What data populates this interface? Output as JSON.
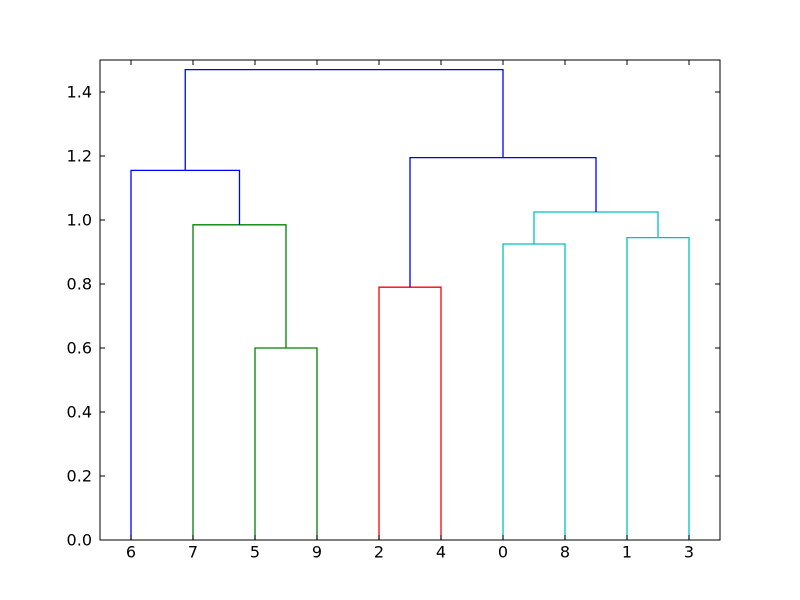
{
  "chart_data": {
    "type": "dendrogram",
    "leaf_order": [
      "6",
      "7",
      "5",
      "9",
      "2",
      "4",
      "0",
      "8",
      "1",
      "3"
    ],
    "ylim": [
      0,
      1.5
    ],
    "yticks": [
      0.0,
      0.2,
      0.4,
      0.6,
      0.8,
      1.0,
      1.2,
      1.4
    ],
    "ytick_labels": [
      "0.0",
      "0.2",
      "0.4",
      "0.6",
      "0.8",
      "1.0",
      "1.2",
      "1.4"
    ],
    "grid": false,
    "colors": {
      "green": "#008000",
      "red": "#ff0000",
      "cyan": "#00bfbf",
      "blue": "#0000ff"
    },
    "links": [
      {
        "left": "5",
        "right": "9",
        "height": 0.6,
        "color": "green"
      },
      {
        "left": "7",
        "right": "(5,9)",
        "height": 0.985,
        "color": "green"
      },
      {
        "left": "2",
        "right": "4",
        "height": 0.79,
        "color": "red"
      },
      {
        "left": "0",
        "right": "8",
        "height": 0.925,
        "color": "cyan"
      },
      {
        "left": "1",
        "right": "3",
        "height": 0.945,
        "color": "cyan"
      },
      {
        "left": "(0,8)",
        "right": "(1,3)",
        "height": 1.025,
        "color": "cyan"
      },
      {
        "left": "6",
        "right": "(7,(5,9))",
        "height": 1.155,
        "color": "blue"
      },
      {
        "left": "(2,4)",
        "right": "((0,8),(1,3))",
        "height": 1.195,
        "color": "blue"
      },
      {
        "left": "(6,(7,(5,9)))",
        "right": "((2,4),((0,8),(1,3)))",
        "height": 1.47,
        "color": "blue"
      }
    ]
  }
}
